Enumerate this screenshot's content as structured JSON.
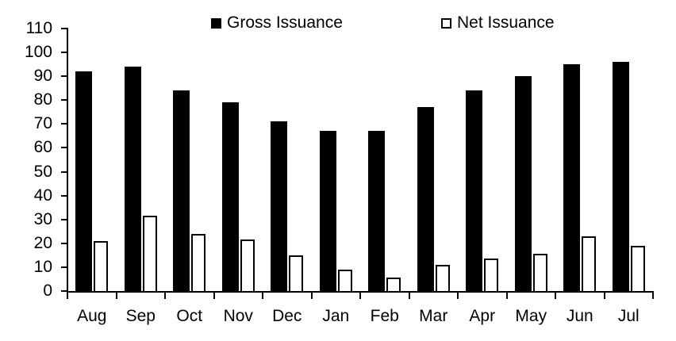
{
  "chart_data": {
    "type": "bar",
    "title": "",
    "xlabel": "",
    "ylabel": "",
    "categories": [
      "Aug",
      "Sep",
      "Oct",
      "Nov",
      "Dec",
      "Jan",
      "Feb",
      "Mar",
      "Apr",
      "May",
      "Jun",
      "Jul"
    ],
    "series": [
      {
        "name": "Gross Issuance",
        "style": "filled",
        "color": "#000000",
        "values": [
          92,
          94,
          84,
          79,
          71,
          67,
          67,
          77,
          84,
          90,
          95,
          96
        ]
      },
      {
        "name": "Net Issuance",
        "style": "outlined",
        "color": "#ffffff",
        "outline_color": "#000000",
        "values": [
          21,
          31.5,
          24,
          21.5,
          15,
          9,
          5.5,
          11,
          13.5,
          15.5,
          23,
          19
        ]
      }
    ],
    "ylim": [
      0,
      110
    ],
    "y_ticks": [
      0,
      10,
      20,
      30,
      40,
      50,
      60,
      70,
      80,
      90,
      100,
      110
    ],
    "legend_position": "top",
    "grid": false,
    "axis_color": "#000000",
    "background_color": "#ffffff"
  }
}
